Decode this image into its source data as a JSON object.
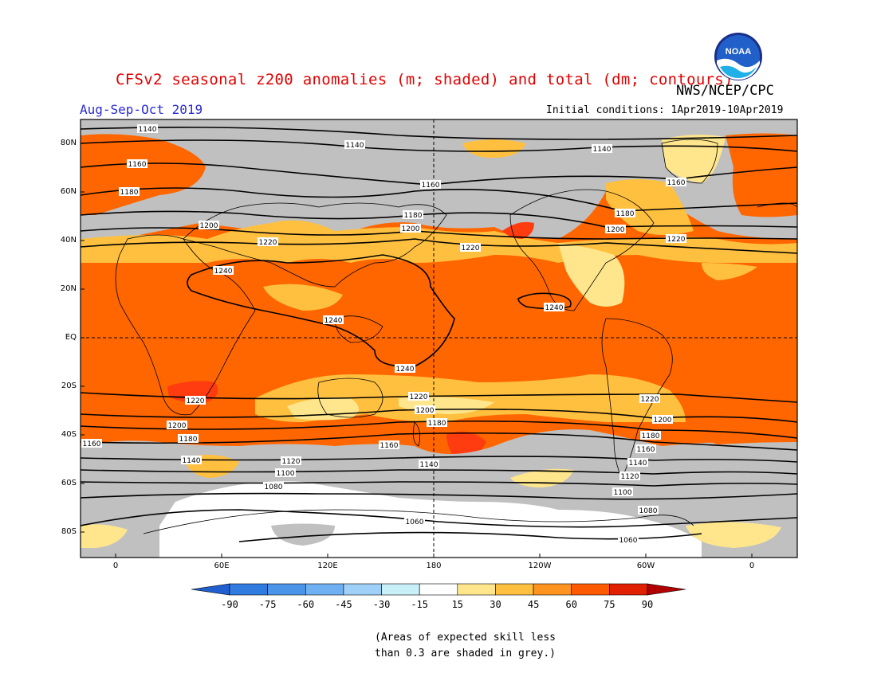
{
  "header": {
    "title": "CFSv2 seasonal z200 anomalies (m; shaded) and total (dm; contours)",
    "agency": "NWS/NCEP/CPC",
    "period": "Aug-Sep-Oct 2019",
    "initial_conditions": "Initial conditions: 1Apr2019-10Apr2019",
    "logo_text": "NOAA"
  },
  "axes": {
    "lat_ticks": [
      "80N",
      "60N",
      "40N",
      "20N",
      "EQ",
      "20S",
      "40S",
      "60S",
      "80S"
    ],
    "lon_ticks": [
      "0",
      "60E",
      "120E",
      "180",
      "120W",
      "60W",
      "0"
    ]
  },
  "contours": {
    "labels": [
      "1140",
      "1140",
      "1140",
      "1160",
      "1160",
      "1160",
      "1180",
      "1180",
      "1180",
      "1200",
      "1200",
      "1200",
      "1220",
      "1220",
      "1220",
      "1240",
      "1240",
      "1240",
      "1240",
      "1220",
      "1220",
      "1220",
      "1200",
      "1200",
      "1200",
      "1180",
      "1180",
      "1180",
      "1160",
      "1160",
      "1160",
      "1140",
      "1140",
      "1140",
      "1120",
      "1120",
      "1100",
      "1100",
      "1080",
      "1080",
      "1060",
      "1060"
    ]
  },
  "colorbar": {
    "labels": [
      "-90",
      "-75",
      "-60",
      "-45",
      "-30",
      "-15",
      "15",
      "30",
      "45",
      "60",
      "75",
      "90"
    ],
    "colors": [
      "#1f5fd0",
      "#2f7be0",
      "#4a95ea",
      "#6fb0f2",
      "#9fd0f8",
      "#c8f0f8",
      "#ffffff",
      "#ffe68c",
      "#ffc040",
      "#ff9320",
      "#ff5a00",
      "#e02000",
      "#b00000"
    ]
  },
  "legend_colors": {
    "grey": "#c0c0c0",
    "light_yellow": "#ffe68c",
    "yellow_orange": "#ffc040",
    "orange": "#ff6600",
    "red_orange": "#ff3b10",
    "white": "#ffffff"
  },
  "footnote": {
    "line1": "(Areas of expected skill less",
    "line2": "than 0.3 are shaded in grey.)"
  }
}
